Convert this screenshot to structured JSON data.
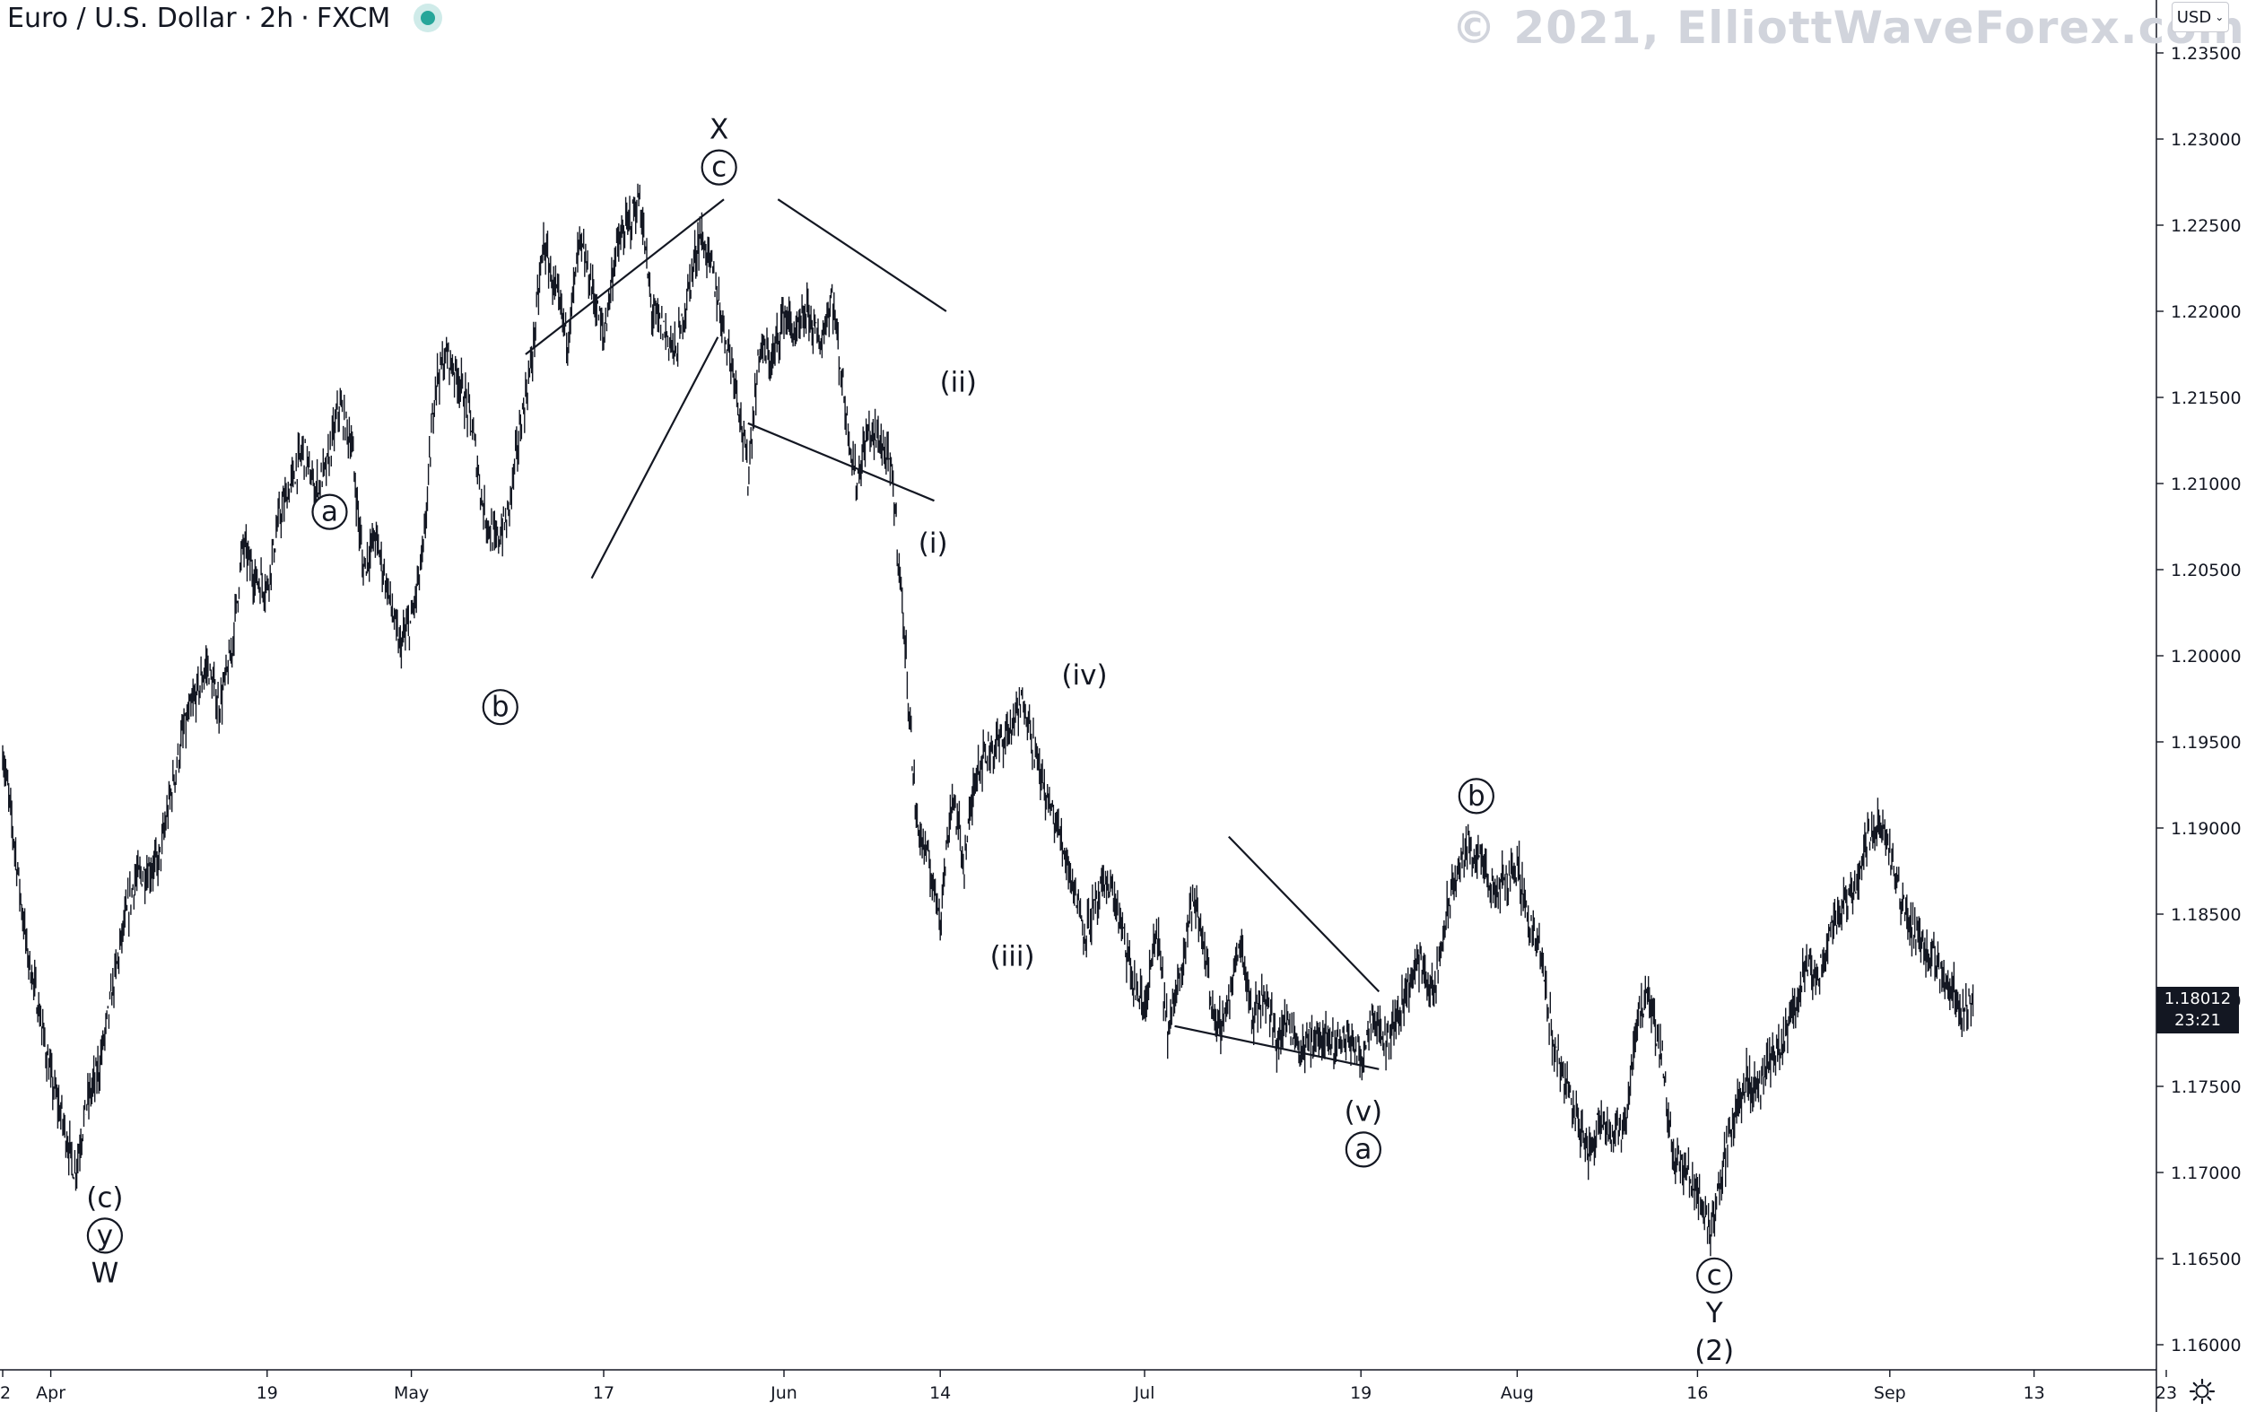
{
  "header": {
    "symbol": "Euro / U.S. Dollar",
    "interval": "2h",
    "exchange": "FXCM",
    "separator": "·"
  },
  "watermark": "© 2021, ElliottWaveForex.com",
  "currency_select": "USD",
  "current_price": {
    "price": "1.18012",
    "countdown": "23:21"
  },
  "colors": {
    "candle": "#131722",
    "grid": "#ffffff",
    "axis": "#131722",
    "tag_bg": "#131722",
    "status": "#26a69a"
  },
  "icons": [
    "chevron-down-icon",
    "gear-icon"
  ],
  "chart_data": {
    "type": "line",
    "symbol": "EURUSD",
    "timeframe": "2h",
    "ylim": [
      1.1585,
      1.2365
    ],
    "y_ticks": [
      "1.23500",
      "1.23000",
      "1.22500",
      "1.22000",
      "1.21500",
      "1.21000",
      "1.20500",
      "1.20000",
      "1.19500",
      "1.19000",
      "1.18500",
      "1.18000",
      "1.17500",
      "1.17000",
      "1.16500",
      "1.16000"
    ],
    "x_ticks": [
      "2",
      "Apr",
      "19",
      "May",
      "17",
      "Jun",
      "14",
      "Jul",
      "19",
      "Aug",
      "16",
      "Sep",
      "13",
      "23"
    ],
    "x_tick_days": [
      0,
      4,
      22,
      34,
      50,
      65,
      78,
      95,
      113,
      126,
      141,
      157,
      169,
      180
    ],
    "x_range_days": [
      0,
      182
    ],
    "price_path": [
      [
        0,
        1.1945
      ],
      [
        1,
        1.189
      ],
      [
        2,
        1.183
      ],
      [
        3,
        1.1795
      ],
      [
        4,
        1.1755
      ],
      [
        5,
        1.173
      ],
      [
        6,
        1.17
      ],
      [
        7,
        1.174
      ],
      [
        8,
        1.176
      ],
      [
        9,
        1.18
      ],
      [
        10,
        1.184
      ],
      [
        11,
        1.187
      ],
      [
        12,
        1.1875
      ],
      [
        13,
        1.188
      ],
      [
        14,
        1.192
      ],
      [
        15,
        1.1955
      ],
      [
        16,
        1.1975
      ],
      [
        17,
        1.1995
      ],
      [
        18,
        1.197
      ],
      [
        19,
        1.2
      ],
      [
        20,
        1.2065
      ],
      [
        21,
        1.2045
      ],
      [
        22,
        1.204
      ],
      [
        23,
        1.208
      ],
      [
        24,
        1.21
      ],
      [
        25,
        1.212
      ],
      [
        26,
        1.2095
      ],
      [
        27,
        1.211
      ],
      [
        28,
        1.2145
      ],
      [
        29,
        1.2125
      ],
      [
        30,
        1.205
      ],
      [
        31,
        1.207
      ],
      [
        32,
        1.204
      ],
      [
        33,
        1.2005
      ],
      [
        34,
        1.202
      ],
      [
        35,
        1.206
      ],
      [
        36,
        1.216
      ],
      [
        37,
        1.2175
      ],
      [
        38,
        1.216
      ],
      [
        39,
        1.2135
      ],
      [
        40,
        1.2085
      ],
      [
        41,
        1.2065
      ],
      [
        42,
        1.208
      ],
      [
        43,
        1.213
      ],
      [
        44,
        1.217
      ],
      [
        45,
        1.224
      ],
      [
        46,
        1.221
      ],
      [
        47,
        1.2185
      ],
      [
        48,
        1.224
      ],
      [
        49,
        1.2215
      ],
      [
        50,
        1.2185
      ],
      [
        51,
        1.2235
      ],
      [
        52,
        1.225
      ],
      [
        53,
        1.2265
      ],
      [
        54,
        1.22
      ],
      [
        55,
        1.219
      ],
      [
        56,
        1.2175
      ],
      [
        57,
        1.221
      ],
      [
        58,
        1.2245
      ],
      [
        59,
        1.2225
      ],
      [
        60,
        1.219
      ],
      [
        61,
        1.216
      ],
      [
        62,
        1.2105
      ],
      [
        63,
        1.218
      ],
      [
        64,
        1.217
      ],
      [
        65,
        1.22
      ],
      [
        66,
        1.2185
      ],
      [
        67,
        1.22
      ],
      [
        68,
        1.218
      ],
      [
        69,
        1.221
      ],
      [
        70,
        1.215
      ],
      [
        71,
        1.21
      ],
      [
        72,
        1.213
      ],
      [
        73,
        1.2125
      ],
      [
        74,
        1.2105
      ],
      [
        75,
        1.2015
      ],
      [
        76,
        1.1905
      ],
      [
        77,
        1.188
      ],
      [
        78,
        1.185
      ],
      [
        79,
        1.192
      ],
      [
        80,
        1.188
      ],
      [
        81,
        1.1935
      ],
      [
        82,
        1.1945
      ],
      [
        83,
        1.195
      ],
      [
        84,
        1.196
      ],
      [
        85,
        1.1975
      ],
      [
        86,
        1.194
      ],
      [
        87,
        1.1915
      ],
      [
        88,
        1.1895
      ],
      [
        89,
        1.187
      ],
      [
        90,
        1.184
      ],
      [
        91,
        1.1855
      ],
      [
        92,
        1.187
      ],
      [
        93,
        1.1845
      ],
      [
        94,
        1.181
      ],
      [
        95,
        1.1795
      ],
      [
        96,
        1.184
      ],
      [
        97,
        1.178
      ],
      [
        98,
        1.182
      ],
      [
        99,
        1.186
      ],
      [
        100,
        1.183
      ],
      [
        101,
        1.178
      ],
      [
        102,
        1.18
      ],
      [
        103,
        1.1835
      ],
      [
        104,
        1.179
      ],
      [
        105,
        1.1805
      ],
      [
        106,
        1.1775
      ],
      [
        107,
        1.179
      ],
      [
        108,
        1.177
      ],
      [
        109,
        1.178
      ],
      [
        110,
        1.1775
      ],
      [
        111,
        1.1775
      ],
      [
        112,
        1.178
      ],
      [
        113,
        1.1765
      ],
      [
        114,
        1.1795
      ],
      [
        115,
        1.1775
      ],
      [
        116,
        1.179
      ],
      [
        117,
        1.181
      ],
      [
        118,
        1.1825
      ],
      [
        119,
        1.18
      ],
      [
        120,
        1.1845
      ],
      [
        121,
        1.1875
      ],
      [
        122,
        1.189
      ],
      [
        123,
        1.188
      ],
      [
        124,
        1.186
      ],
      [
        125,
        1.187
      ],
      [
        126,
        1.188
      ],
      [
        127,
        1.1845
      ],
      [
        128,
        1.1825
      ],
      [
        129,
        1.1775
      ],
      [
        130,
        1.1755
      ],
      [
        131,
        1.173
      ],
      [
        132,
        1.171
      ],
      [
        133,
        1.1735
      ],
      [
        134,
        1.172
      ],
      [
        135,
        1.173
      ],
      [
        136,
        1.179
      ],
      [
        137,
        1.18
      ],
      [
        138,
        1.177
      ],
      [
        139,
        1.171
      ],
      [
        140,
        1.17
      ],
      [
        141,
        1.169
      ],
      [
        142,
        1.1665
      ],
      [
        143,
        1.17
      ],
      [
        144,
        1.173
      ],
      [
        145,
        1.1755
      ],
      [
        146,
        1.1745
      ],
      [
        147,
        1.1765
      ],
      [
        148,
        1.177
      ],
      [
        149,
        1.1795
      ],
      [
        150,
        1.182
      ],
      [
        151,
        1.181
      ],
      [
        152,
        1.184
      ],
      [
        153,
        1.1855
      ],
      [
        154,
        1.1865
      ],
      [
        155,
        1.189
      ],
      [
        156,
        1.1905
      ],
      [
        157,
        1.1885
      ],
      [
        158,
        1.1855
      ],
      [
        159,
        1.184
      ],
      [
        160,
        1.183
      ],
      [
        161,
        1.182
      ],
      [
        162,
        1.181
      ],
      [
        163,
        1.1795
      ],
      [
        164,
        1.1801
      ]
    ],
    "trendlines": [
      [
        [
          43.5,
          1.2175
        ],
        [
          60,
          1.2265
        ]
      ],
      [
        [
          49,
          1.2045
        ],
        [
          59.5,
          1.2185
        ]
      ],
      [
        [
          64.5,
          1.2265
        ],
        [
          78.5,
          1.22
        ]
      ],
      [
        [
          62,
          1.2135
        ],
        [
          77.5,
          1.209
        ]
      ],
      [
        [
          102,
          1.1895
        ],
        [
          114.5,
          1.1805
        ]
      ],
      [
        [
          97.5,
          1.1785
        ],
        [
          114.5,
          1.176
        ]
      ]
    ],
    "wave_labels": [
      {
        "lines": [
          {
            "text": "(c)",
            "circle": false
          },
          {
            "text": "y",
            "circle": true
          },
          {
            "text": "W",
            "circle": false
          }
        ],
        "x": 8.5,
        "y": 1.1705,
        "anchor": "below"
      },
      {
        "lines": [
          {
            "text": "a",
            "circle": true
          }
        ],
        "x": 27.2,
        "y": 1.207,
        "anchor": "above"
      },
      {
        "lines": [
          {
            "text": "b",
            "circle": true
          }
        ],
        "x": 41.4,
        "y": 1.199,
        "anchor": "below"
      },
      {
        "lines": [
          {
            "text": "X",
            "circle": false
          },
          {
            "text": "c",
            "circle": true
          }
        ],
        "x": 59.6,
        "y": 1.227,
        "anchor": "above"
      },
      {
        "lines": [
          {
            "text": "(i)",
            "circle": false
          }
        ],
        "x": 77.4,
        "y": 1.2085,
        "anchor": "below"
      },
      {
        "lines": [
          {
            "text": "(ii)",
            "circle": false
          }
        ],
        "x": 79.5,
        "y": 1.2145,
        "anchor": "above"
      },
      {
        "lines": [
          {
            "text": "(iii)",
            "circle": false
          }
        ],
        "x": 84,
        "y": 1.1845,
        "anchor": "below"
      },
      {
        "lines": [
          {
            "text": "(iv)",
            "circle": false
          }
        ],
        "x": 90,
        "y": 1.1975,
        "anchor": "above"
      },
      {
        "lines": [
          {
            "text": "(v)",
            "circle": false
          },
          {
            "text": "a",
            "circle": true
          }
        ],
        "x": 113.2,
        "y": 1.1755,
        "anchor": "below"
      },
      {
        "lines": [
          {
            "text": "b",
            "circle": true
          }
        ],
        "x": 122.6,
        "y": 1.1905,
        "anchor": "above"
      },
      {
        "lines": [
          {
            "text": "c",
            "circle": true
          },
          {
            "text": "Y",
            "circle": false
          },
          {
            "text": "(2)",
            "circle": false
          }
        ],
        "x": 142.4,
        "y": 1.166,
        "anchor": "below"
      }
    ],
    "grid": false,
    "title": ""
  }
}
